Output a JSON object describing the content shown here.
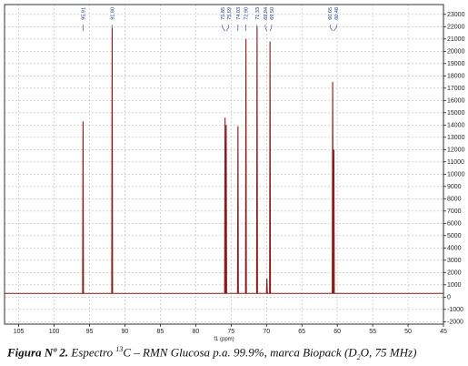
{
  "chart_data": {
    "type": "line",
    "x_label": "f1 (ppm)",
    "caption_parts": [
      "Figura Nº 2.",
      " Espectro ",
      "13",
      "C – RMN Glucosa p.a. 99.9%, marca Biopack (D",
      "2",
      "O, 75 MHz)"
    ],
    "series": [
      {
        "name": "13C",
        "color": "#8b1a1a",
        "x": [
          107,
          95.97,
          95.91,
          95.85,
          91.86,
          91.8,
          91.74,
          75.91,
          75.85,
          75.79,
          75.75,
          75.69,
          75.63,
          74.09,
          74.03,
          73.97,
          72.96,
          72.9,
          72.84,
          71.39,
          71.33,
          71.27,
          70,
          69.94,
          69.88,
          69.56,
          69.5,
          69.44,
          60.71,
          60.65,
          60.59,
          60.54,
          60.48,
          60.42,
          45
        ],
        "values": [
          300,
          300,
          14300,
          300,
          300,
          21900,
          300,
          300,
          14600,
          300,
          300,
          14000,
          300,
          300,
          13900,
          300,
          300,
          21000,
          300,
          300,
          22000,
          300,
          300,
          1500,
          300,
          300,
          20800,
          300,
          300,
          17500,
          300,
          300,
          12000,
          300,
          300
        ]
      }
    ],
    "peak_labels": [
      95.91,
      {
        "value": 91.8,
        "label": "91.80"
      },
      75.85,
      75.69,
      74.03,
      {
        "value": 72.9,
        "label": "72.90"
      },
      71.33,
      69.94,
      {
        "value": 69.5,
        "label": "69.50"
      },
      60.65,
      60.48
    ],
    "xlim": [
      107,
      45
    ],
    "xticks": [
      105,
      100,
      95,
      90,
      85,
      80,
      75,
      70,
      65,
      60,
      55,
      50,
      45
    ],
    "ylim": [
      -2200,
      23800
    ],
    "yticks": [
      -2000,
      -1000,
      0,
      1000,
      2000,
      3000,
      4000,
      5000,
      6000,
      7000,
      8000,
      9000,
      10000,
      11000,
      12000,
      13000,
      14000,
      15000,
      16000,
      17000,
      18000,
      19000,
      20000,
      21000,
      22000,
      23000
    ],
    "grid": true
  }
}
